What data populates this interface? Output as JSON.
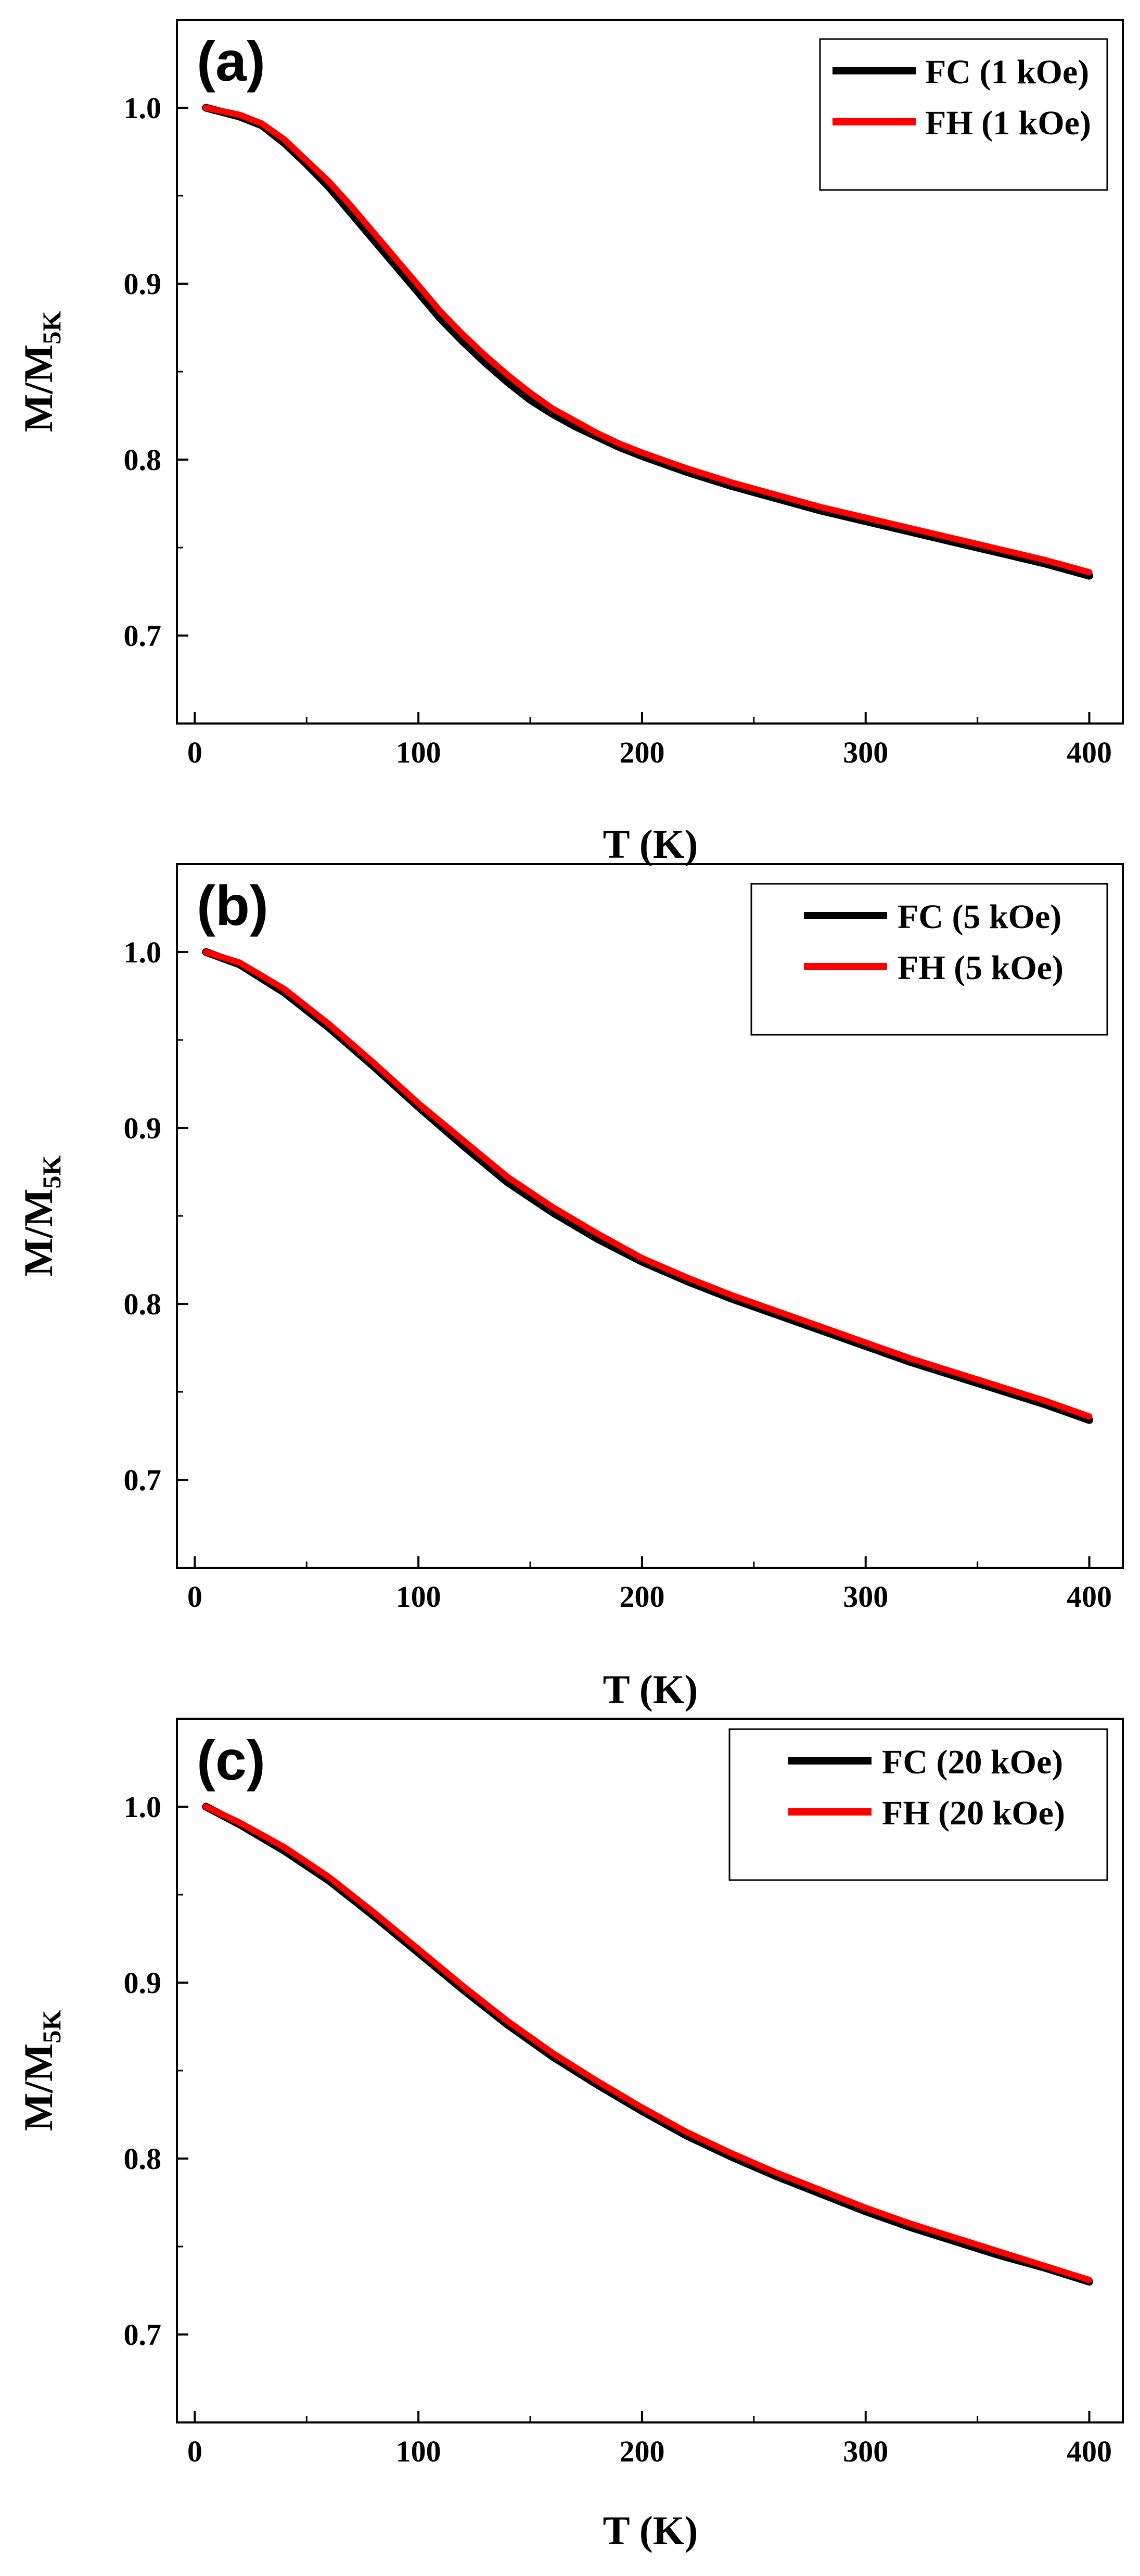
{
  "figure": {
    "x_axis_label": "T (K)",
    "y_axis_label_main": "M/M",
    "y_axis_label_sub": "5K"
  },
  "chart_data": [
    {
      "type": "line",
      "panel_label": "(a)",
      "title": "",
      "xlabel": "T (K)",
      "ylabel": "M/M5K",
      "xlim": [
        -8,
        415
      ],
      "ylim": [
        0.65,
        1.05
      ],
      "x_ticks": [
        0,
        100,
        200,
        300,
        400
      ],
      "x_tick_labels": [
        "0",
        "100",
        "200",
        "300",
        "400"
      ],
      "y_ticks": [
        0.7,
        0.8,
        0.9,
        1.0
      ],
      "y_tick_labels": [
        "0.7",
        "0.8",
        "0.9",
        "1.0"
      ],
      "grid": false,
      "legend_position": "top-right",
      "series": [
        {
          "name": "FC (1 kOe)",
          "color": "#000000",
          "x": [
            5,
            20,
            30,
            40,
            50,
            60,
            70,
            80,
            90,
            100,
            110,
            120,
            130,
            140,
            150,
            160,
            170,
            180,
            190,
            200,
            220,
            240,
            260,
            280,
            300,
            320,
            340,
            360,
            380,
            400
          ],
          "y": [
            1.0,
            0.995,
            0.99,
            0.98,
            0.968,
            0.955,
            0.94,
            0.925,
            0.91,
            0.895,
            0.88,
            0.867,
            0.855,
            0.844,
            0.834,
            0.826,
            0.819,
            0.813,
            0.807,
            0.802,
            0.793,
            0.785,
            0.778,
            0.771,
            0.765,
            0.759,
            0.753,
            0.747,
            0.741,
            0.734
          ]
        },
        {
          "name": "FH (1 kOe)",
          "color": "#ff0000",
          "x": [
            5,
            20,
            30,
            40,
            50,
            60,
            70,
            80,
            90,
            100,
            110,
            120,
            130,
            140,
            150,
            160,
            170,
            180,
            190,
            200,
            220,
            240,
            260,
            280,
            300,
            320,
            340,
            360,
            380,
            400
          ],
          "y": [
            1.0,
            0.996,
            0.991,
            0.982,
            0.97,
            0.958,
            0.944,
            0.929,
            0.914,
            0.899,
            0.884,
            0.871,
            0.859,
            0.848,
            0.838,
            0.829,
            0.822,
            0.815,
            0.809,
            0.804,
            0.795,
            0.787,
            0.78,
            0.773,
            0.767,
            0.761,
            0.755,
            0.749,
            0.743,
            0.736
          ]
        }
      ]
    },
    {
      "type": "line",
      "panel_label": "(b)",
      "title": "",
      "xlabel": "T (K)",
      "ylabel": "M/M5K",
      "xlim": [
        -8,
        415
      ],
      "ylim": [
        0.65,
        1.05
      ],
      "x_ticks": [
        0,
        100,
        200,
        300,
        400
      ],
      "x_tick_labels": [
        "0",
        "100",
        "200",
        "300",
        "400"
      ],
      "y_ticks": [
        0.7,
        0.8,
        0.9,
        1.0
      ],
      "y_tick_labels": [
        "0.7",
        "0.8",
        "0.9",
        "1.0"
      ],
      "grid": false,
      "legend_position": "top-right",
      "series": [
        {
          "name": "FC (5 kOe)",
          "color": "#000000",
          "x": [
            5,
            20,
            40,
            60,
            80,
            100,
            120,
            140,
            160,
            180,
            200,
            220,
            240,
            260,
            280,
            300,
            320,
            340,
            360,
            380,
            400
          ],
          "y": [
            1.0,
            0.993,
            0.977,
            0.957,
            0.935,
            0.912,
            0.89,
            0.869,
            0.852,
            0.837,
            0.824,
            0.813,
            0.803,
            0.794,
            0.785,
            0.776,
            0.767,
            0.759,
            0.751,
            0.743,
            0.734
          ]
        },
        {
          "name": "FH (5 kOe)",
          "color": "#ff0000",
          "x": [
            5,
            20,
            40,
            60,
            80,
            100,
            120,
            140,
            160,
            180,
            200,
            220,
            240,
            260,
            280,
            300,
            320,
            340,
            360,
            380,
            400
          ],
          "y": [
            1.0,
            0.994,
            0.979,
            0.959,
            0.937,
            0.914,
            0.893,
            0.872,
            0.855,
            0.84,
            0.826,
            0.815,
            0.805,
            0.796,
            0.787,
            0.778,
            0.769,
            0.761,
            0.753,
            0.745,
            0.736
          ]
        }
      ]
    },
    {
      "type": "line",
      "panel_label": "(c)",
      "title": "",
      "xlabel": "T (K)",
      "ylabel": "M/M5K",
      "xlim": [
        -8,
        415
      ],
      "ylim": [
        0.65,
        1.05
      ],
      "x_ticks": [
        0,
        100,
        200,
        300,
        400
      ],
      "x_tick_labels": [
        "0",
        "100",
        "200",
        "300",
        "400"
      ],
      "y_ticks": [
        0.7,
        0.8,
        0.9,
        1.0
      ],
      "y_tick_labels": [
        "0.7",
        "0.8",
        "0.9",
        "1.0"
      ],
      "grid": false,
      "legend_position": "top-right",
      "series": [
        {
          "name": "FC (20 kOe)",
          "color": "#000000",
          "x": [
            5,
            20,
            40,
            60,
            80,
            100,
            120,
            140,
            160,
            180,
            200,
            220,
            240,
            260,
            280,
            300,
            320,
            340,
            360,
            380,
            400
          ],
          "y": [
            1.0,
            0.99,
            0.975,
            0.958,
            0.938,
            0.917,
            0.896,
            0.876,
            0.858,
            0.842,
            0.827,
            0.813,
            0.801,
            0.79,
            0.78,
            0.77,
            0.761,
            0.753,
            0.745,
            0.738,
            0.73
          ]
        },
        {
          "name": "FH (20 kOe)",
          "color": "#ff0000",
          "x": [
            5,
            20,
            40,
            60,
            80,
            100,
            120,
            140,
            160,
            180,
            200,
            220,
            240,
            260,
            280,
            300,
            320,
            340,
            360,
            380,
            400
          ],
          "y": [
            1.0,
            0.991,
            0.977,
            0.96,
            0.94,
            0.919,
            0.898,
            0.878,
            0.86,
            0.844,
            0.829,
            0.815,
            0.803,
            0.792,
            0.782,
            0.772,
            0.763,
            0.755,
            0.747,
            0.739,
            0.731
          ]
        }
      ]
    }
  ]
}
